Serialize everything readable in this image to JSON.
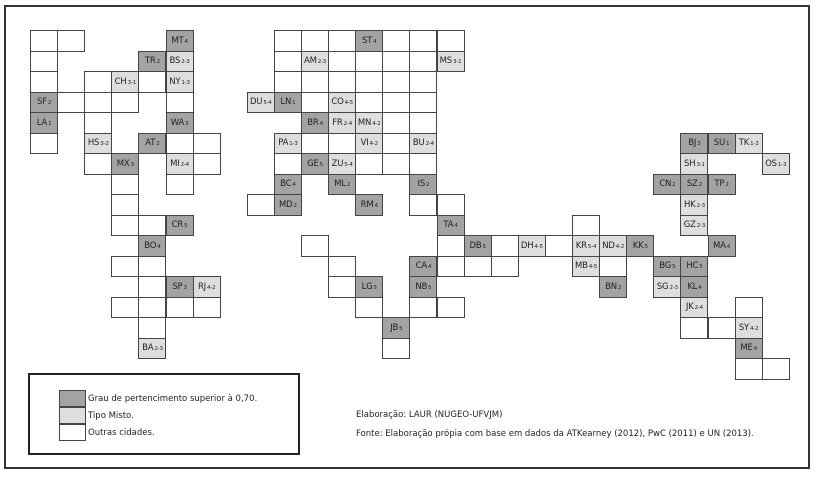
{
  "colors": {
    "dark": "#a3a3a3",
    "light": "#dedede",
    "other": "#ffffff"
  },
  "cells": [
    {
      "label": "MT",
      "sub": "4",
      "type": "dark"
    },
    {
      "label": "TR",
      "sub": "2",
      "type": "dark"
    },
    {
      "label": "BS",
      "sub": "2-3",
      "type": "light"
    },
    {
      "label": "CH",
      "sub": "3-1",
      "type": "light"
    },
    {
      "label": "NY",
      "sub": "1-3",
      "type": "light"
    },
    {
      "label": "SF",
      "sub": "2",
      "type": "dark"
    },
    {
      "label": "LA",
      "sub": "1",
      "type": "dark"
    },
    {
      "label": "WA",
      "sub": "3",
      "type": "dark"
    },
    {
      "label": "HS",
      "sub": "3-2",
      "type": "light"
    },
    {
      "label": "AT",
      "sub": "2",
      "type": "dark"
    },
    {
      "label": "MX",
      "sub": "3",
      "type": "dark"
    },
    {
      "label": "MI",
      "sub": "2-4",
      "type": "light"
    },
    {
      "label": "CR",
      "sub": "5",
      "type": "dark"
    },
    {
      "label": "BO",
      "sub": "4",
      "type": "dark"
    },
    {
      "label": "SP",
      "sub": "3",
      "type": "dark"
    },
    {
      "label": "RJ",
      "sub": "4-2",
      "type": "light"
    },
    {
      "label": "BA",
      "sub": "2-3",
      "type": "light"
    },
    {
      "label": "ST",
      "sub": "4",
      "type": "dark"
    },
    {
      "label": "AM",
      "sub": "2-3",
      "type": "light"
    },
    {
      "label": "MS",
      "sub": "3-1",
      "type": "light"
    },
    {
      "label": "DU",
      "sub": "5-4",
      "type": "light"
    },
    {
      "label": "LN",
      "sub": "1",
      "type": "dark"
    },
    {
      "label": "CO",
      "sub": "4-5",
      "type": "light"
    },
    {
      "label": "BR",
      "sub": "4",
      "type": "dark"
    },
    {
      "label": "FR",
      "sub": "2-4",
      "type": "light"
    },
    {
      "label": "MN",
      "sub": "4-2",
      "type": "light"
    },
    {
      "label": "PA",
      "sub": "1-3",
      "type": "light"
    },
    {
      "label": "VI",
      "sub": "4-2",
      "type": "light"
    },
    {
      "label": "BU",
      "sub": "2-4",
      "type": "light"
    },
    {
      "label": "GE",
      "sub": "5",
      "type": "dark"
    },
    {
      "label": "ZU",
      "sub": "5-4",
      "type": "light"
    },
    {
      "label": "BC",
      "sub": "4",
      "type": "dark"
    },
    {
      "label": "ML",
      "sub": "2",
      "type": "dark"
    },
    {
      "label": "IS",
      "sub": "2",
      "type": "dark"
    },
    {
      "label": "MD",
      "sub": "2",
      "type": "dark"
    },
    {
      "label": "RM",
      "sub": "4",
      "type": "dark"
    },
    {
      "label": "TA",
      "sub": "4",
      "type": "dark"
    },
    {
      "label": "DB",
      "sub": "5",
      "type": "dark"
    },
    {
      "label": "DH",
      "sub": "4-5",
      "type": "light"
    },
    {
      "label": "CA",
      "sub": "4",
      "type": "dark"
    },
    {
      "label": "LG",
      "sub": "5",
      "type": "dark"
    },
    {
      "label": "NB",
      "sub": "5",
      "type": "dark"
    },
    {
      "label": "JB",
      "sub": "5",
      "type": "dark"
    },
    {
      "label": "KR",
      "sub": "5-4",
      "type": "light"
    },
    {
      "label": "ND",
      "sub": "4-2",
      "type": "light"
    },
    {
      "label": "KK",
      "sub": "5",
      "type": "dark"
    },
    {
      "label": "MA",
      "sub": "4",
      "type": "dark"
    },
    {
      "label": "MB",
      "sub": "4-5",
      "type": "light"
    },
    {
      "label": "BG",
      "sub": "5",
      "type": "dark"
    },
    {
      "label": "HC",
      "sub": "5",
      "type": "dark"
    },
    {
      "label": "BN",
      "sub": "2",
      "type": "dark"
    },
    {
      "label": "SG",
      "sub": "2-3",
      "type": "light"
    },
    {
      "label": "KL",
      "sub": "4",
      "type": "dark"
    },
    {
      "label": "JK",
      "sub": "2-4",
      "type": "light"
    },
    {
      "label": "SY",
      "sub": "4-2",
      "type": "light"
    },
    {
      "label": "ME",
      "sub": "4",
      "type": "dark"
    },
    {
      "label": "BJ",
      "sub": "3",
      "type": "dark"
    },
    {
      "label": "SU",
      "sub": "1",
      "type": "dark"
    },
    {
      "label": "TK",
      "sub": "1-3",
      "type": "light"
    },
    {
      "label": "SH",
      "sub": "3-1",
      "type": "light"
    },
    {
      "label": "OS",
      "sub": "1-3",
      "type": "light"
    },
    {
      "label": "CN",
      "sub": "2",
      "type": "dark"
    },
    {
      "label": "SZ",
      "sub": "2",
      "type": "dark"
    },
    {
      "label": "TP",
      "sub": "2",
      "type": "dark"
    },
    {
      "label": "HK",
      "sub": "2-3",
      "type": "light"
    },
    {
      "label": "GZ",
      "sub": "2-3",
      "type": "light"
    }
  ],
  "legend": {
    "dark": "Grau de pertencimento superior à 0,70.",
    "light": "Tipo Misto.",
    "other": "Outras cidades."
  },
  "credits": {
    "elaboracao": "Elaboração: LAUR (NUGEO-UFVJM)",
    "fonte": "Fonte: Elaboração própia com base em dados da ATKearney (2012), PwC (2011) e UN (2013)."
  }
}
